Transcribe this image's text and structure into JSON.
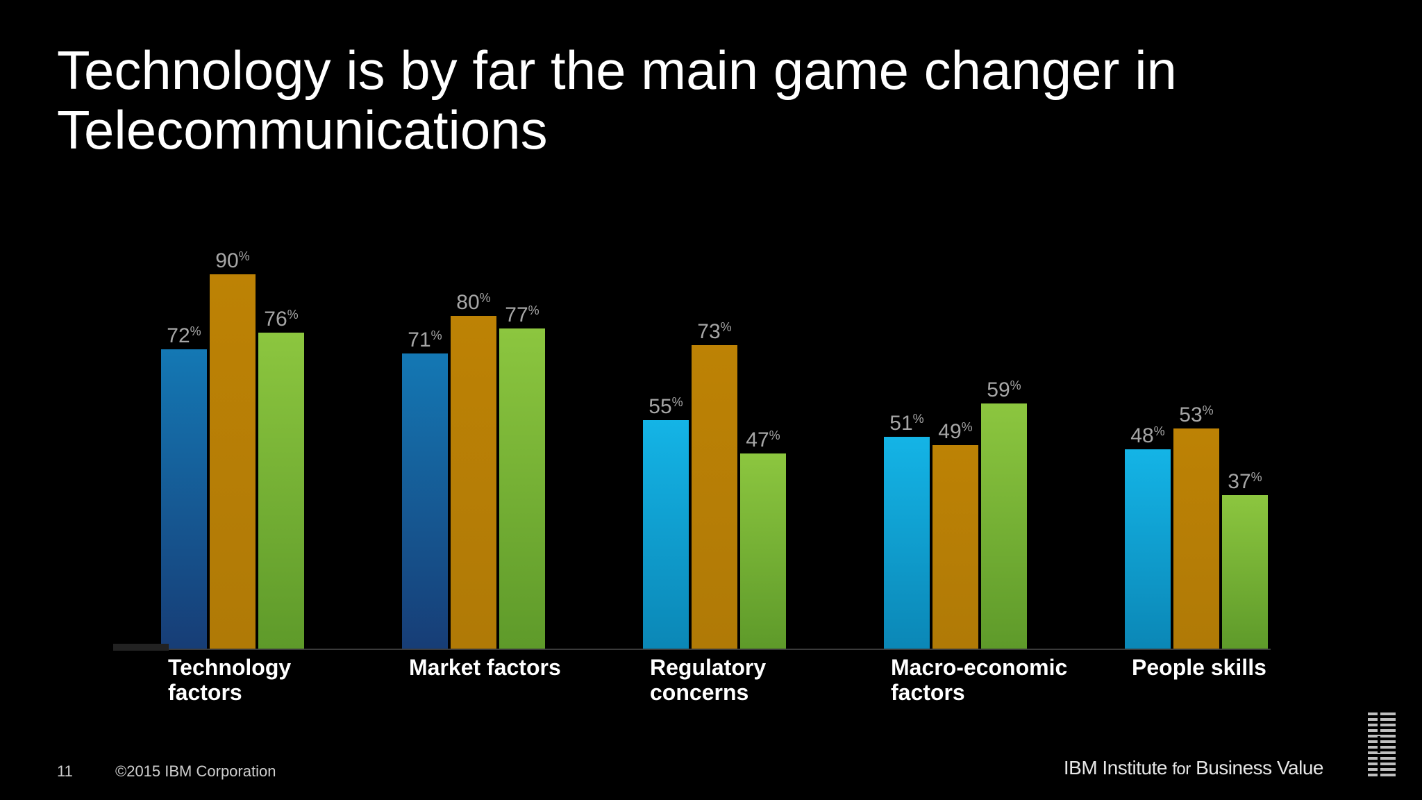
{
  "slide": {
    "title_line1": "Technology is by far the main game changer in",
    "title_line2": "Telecommunications"
  },
  "footer": {
    "page_number": "11",
    "copyright": "©2015 IBM Corporation",
    "org_part1": "IBM Institute",
    "org_for": "for",
    "org_part2": "Business Value",
    "logo_text": "IBM",
    "logo_icon": "ibm-logo-icon"
  },
  "colors": {
    "background": "#000000",
    "series1_top": "#1478b4",
    "series1_bottom": "#173d76",
    "series1_light_top": "#14b4e6",
    "series1_light_bottom": "#0b87b6",
    "series2": "#b88005",
    "series3_top": "#8cc63f",
    "series3_bottom": "#5e9a2a",
    "value_label": "#a6a6a6",
    "category_label": "#ffffff"
  },
  "chart_data": {
    "type": "bar",
    "categories": [
      [
        "Technology",
        "factors"
      ],
      [
        "Market factors"
      ],
      [
        "Regulatory",
        "concerns"
      ],
      [
        "Macro-economic",
        "factors"
      ],
      [
        "People skills"
      ]
    ],
    "series": [
      {
        "values": [
          72,
          71,
          55,
          51,
          48
        ]
      },
      {
        "values": [
          90,
          80,
          73,
          49,
          53
        ]
      },
      {
        "values": [
          76,
          77,
          47,
          59,
          37
        ]
      }
    ],
    "unit": "%",
    "ylim": [
      0,
      100
    ],
    "grid": false,
    "legend": "none"
  }
}
